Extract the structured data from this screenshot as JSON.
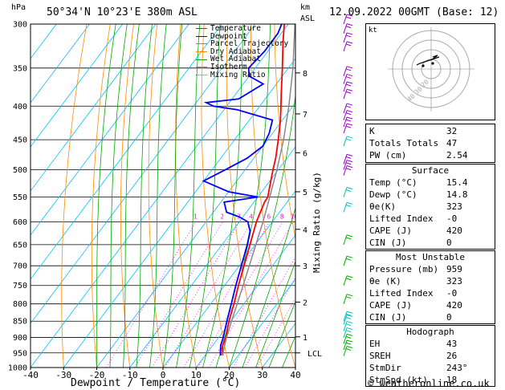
{
  "header": {
    "left_unit": "hPa",
    "location": "50°34'N  10°23'E  380m  ASL",
    "right_unit_top": "km",
    "right_unit_bottom": "ASL",
    "datetime": "12.09.2022  00GMT  (Base: 12)"
  },
  "footer": {
    "xlabel": "Dewpoint / Temperature (°C)",
    "ylabel_right": "Mixing Ratio (g/kg)",
    "credit": "© weatheronline.co.uk"
  },
  "legend": [
    {
      "label": "Temperature",
      "color": "#ff0000",
      "style": "solid"
    },
    {
      "label": "Dewpoint",
      "color": "#0000ff",
      "style": "solid"
    },
    {
      "label": "Parcel Trajectory",
      "color": "#888888",
      "style": "solid"
    },
    {
      "label": "Dry Adiabat",
      "color": "#ff8c00",
      "style": "solid"
    },
    {
      "label": "Wet Adiabat",
      "color": "#00aa00",
      "style": "solid"
    },
    {
      "label": "Isotherm",
      "color": "#00bfff",
      "style": "solid"
    },
    {
      "label": "Mixing Ratio",
      "color": "#ff00ff",
      "style": "dotted"
    }
  ],
  "chart_data": {
    "type": "line",
    "title": "",
    "xlabel": "Dewpoint / Temperature (°C)",
    "ylabel": "hPa",
    "xlim": [
      -40,
      40
    ],
    "ylim": [
      1000,
      300
    ],
    "x_ticks": [
      "-40",
      "-30",
      "-20",
      "-10",
      "0",
      "10",
      "20",
      "30",
      "40"
    ],
    "pressure_levels": [
      "300",
      "350",
      "400",
      "450",
      "500",
      "550",
      "600",
      "650",
      "700",
      "750",
      "800",
      "850",
      "900",
      "950",
      "1000"
    ],
    "km_ticks": [
      {
        "label": "8",
        "p": 356
      },
      {
        "label": "7",
        "p": 411
      },
      {
        "label": "6",
        "p": 471
      },
      {
        "label": "5",
        "p": 540
      },
      {
        "label": "4",
        "p": 616
      },
      {
        "label": "3",
        "p": 700
      },
      {
        "label": "2",
        "p": 795
      },
      {
        "label": "1",
        "p": 898
      },
      {
        "label": "LCL",
        "p": 950
      }
    ],
    "mixing_ratio_labels": [
      "1",
      "2",
      "3",
      "4",
      "6",
      "8",
      "10",
      "16",
      "20",
      "25"
    ],
    "mixing_ratio_values": [
      1,
      2,
      3,
      4,
      6,
      8,
      10,
      16,
      20,
      25
    ],
    "series": [
      {
        "name": "Temperature",
        "color": "#ff0000",
        "points": [
          [
            959,
            15.4
          ],
          [
            950,
            14.6
          ],
          [
            925,
            13.0
          ],
          [
            900,
            12.2
          ],
          [
            850,
            9.4
          ],
          [
            800,
            7.0
          ],
          [
            750,
            4.2
          ],
          [
            700,
            1.4
          ],
          [
            650,
            -1.6
          ],
          [
            600,
            -4.8
          ],
          [
            580,
            -5.8
          ],
          [
            560,
            -6.8
          ],
          [
            550,
            -7.0
          ],
          [
            500,
            -11.6
          ],
          [
            480,
            -13.4
          ],
          [
            450,
            -16.8
          ],
          [
            420,
            -20.6
          ],
          [
            400,
            -23.6
          ],
          [
            380,
            -26.8
          ],
          [
            350,
            -31.8
          ],
          [
            320,
            -37.4
          ],
          [
            300,
            -41.2
          ]
        ]
      },
      {
        "name": "Dewpoint",
        "color": "#0000ff",
        "points": [
          [
            959,
            14.8
          ],
          [
            950,
            14.0
          ],
          [
            925,
            12.4
          ],
          [
            900,
            11.4
          ],
          [
            850,
            8.8
          ],
          [
            800,
            6.2
          ],
          [
            750,
            3.4
          ],
          [
            700,
            0.6
          ],
          [
            650,
            -2.4
          ],
          [
            620,
            -4.6
          ],
          [
            600,
            -7.4
          ],
          [
            590,
            -11
          ],
          [
            580,
            -16
          ],
          [
            560,
            -19
          ],
          [
            550,
            -10
          ],
          [
            540,
            -20
          ],
          [
            520,
            -30
          ],
          [
            500,
            -26
          ],
          [
            480,
            -22
          ],
          [
            460,
            -20
          ],
          [
            440,
            -21
          ],
          [
            420,
            -23
          ],
          [
            405,
            -36
          ],
          [
            400,
            -44
          ],
          [
            395,
            -47
          ],
          [
            390,
            -38
          ],
          [
            370,
            -34
          ],
          [
            360,
            -40
          ],
          [
            350,
            -42
          ],
          [
            330,
            -41
          ],
          [
            310,
            -41
          ],
          [
            300,
            -42
          ]
        ]
      },
      {
        "name": "Parcel Trajectory",
        "color": "#888888",
        "points": [
          [
            959,
            15.4
          ],
          [
            950,
            14.8
          ],
          [
            900,
            12.4
          ],
          [
            850,
            10.2
          ],
          [
            800,
            8.0
          ],
          [
            750,
            5.6
          ],
          [
            700,
            3.0
          ],
          [
            650,
            0.2
          ],
          [
            600,
            -2.8
          ],
          [
            550,
            -6.4
          ],
          [
            500,
            -10.4
          ],
          [
            450,
            -15.2
          ],
          [
            400,
            -21.2
          ],
          [
            350,
            -28.6
          ],
          [
            300,
            -38.0
          ]
        ]
      }
    ]
  },
  "hodograph": {
    "label": "kt",
    "ring_labels": [
      "40",
      "30",
      "20"
    ]
  },
  "indices": {
    "top": [
      {
        "label": "K",
        "value": "32"
      },
      {
        "label": "Totals Totals",
        "value": "47"
      },
      {
        "label": "PW (cm)",
        "value": "2.54"
      }
    ],
    "surface": {
      "title": "Surface",
      "rows": [
        {
          "label": "Temp (°C)",
          "value": "15.4"
        },
        {
          "label": "Dewp (°C)",
          "value": "14.8"
        },
        {
          "label": "θe(K)",
          "value": "323"
        },
        {
          "label": "Lifted Index",
          "value": "-0"
        },
        {
          "label": "CAPE (J)",
          "value": "420"
        },
        {
          "label": "CIN (J)",
          "value": "0"
        }
      ]
    },
    "most_unstable": {
      "title": "Most Unstable",
      "rows": [
        {
          "label": "Pressure (mb)",
          "value": "959"
        },
        {
          "label": "θe (K)",
          "value": "323"
        },
        {
          "label": "Lifted Index",
          "value": "-0"
        },
        {
          "label": "CAPE (J)",
          "value": "420"
        },
        {
          "label": "CIN (J)",
          "value": "0"
        }
      ]
    },
    "hodograph_box": {
      "title": "Hodograph",
      "rows": [
        {
          "label": "EH",
          "value": "43"
        },
        {
          "label": "SREH",
          "value": "26"
        },
        {
          "label": "StmDir",
          "value": "243°"
        },
        {
          "label": "StmSpd (kt)",
          "value": "18"
        }
      ]
    }
  }
}
